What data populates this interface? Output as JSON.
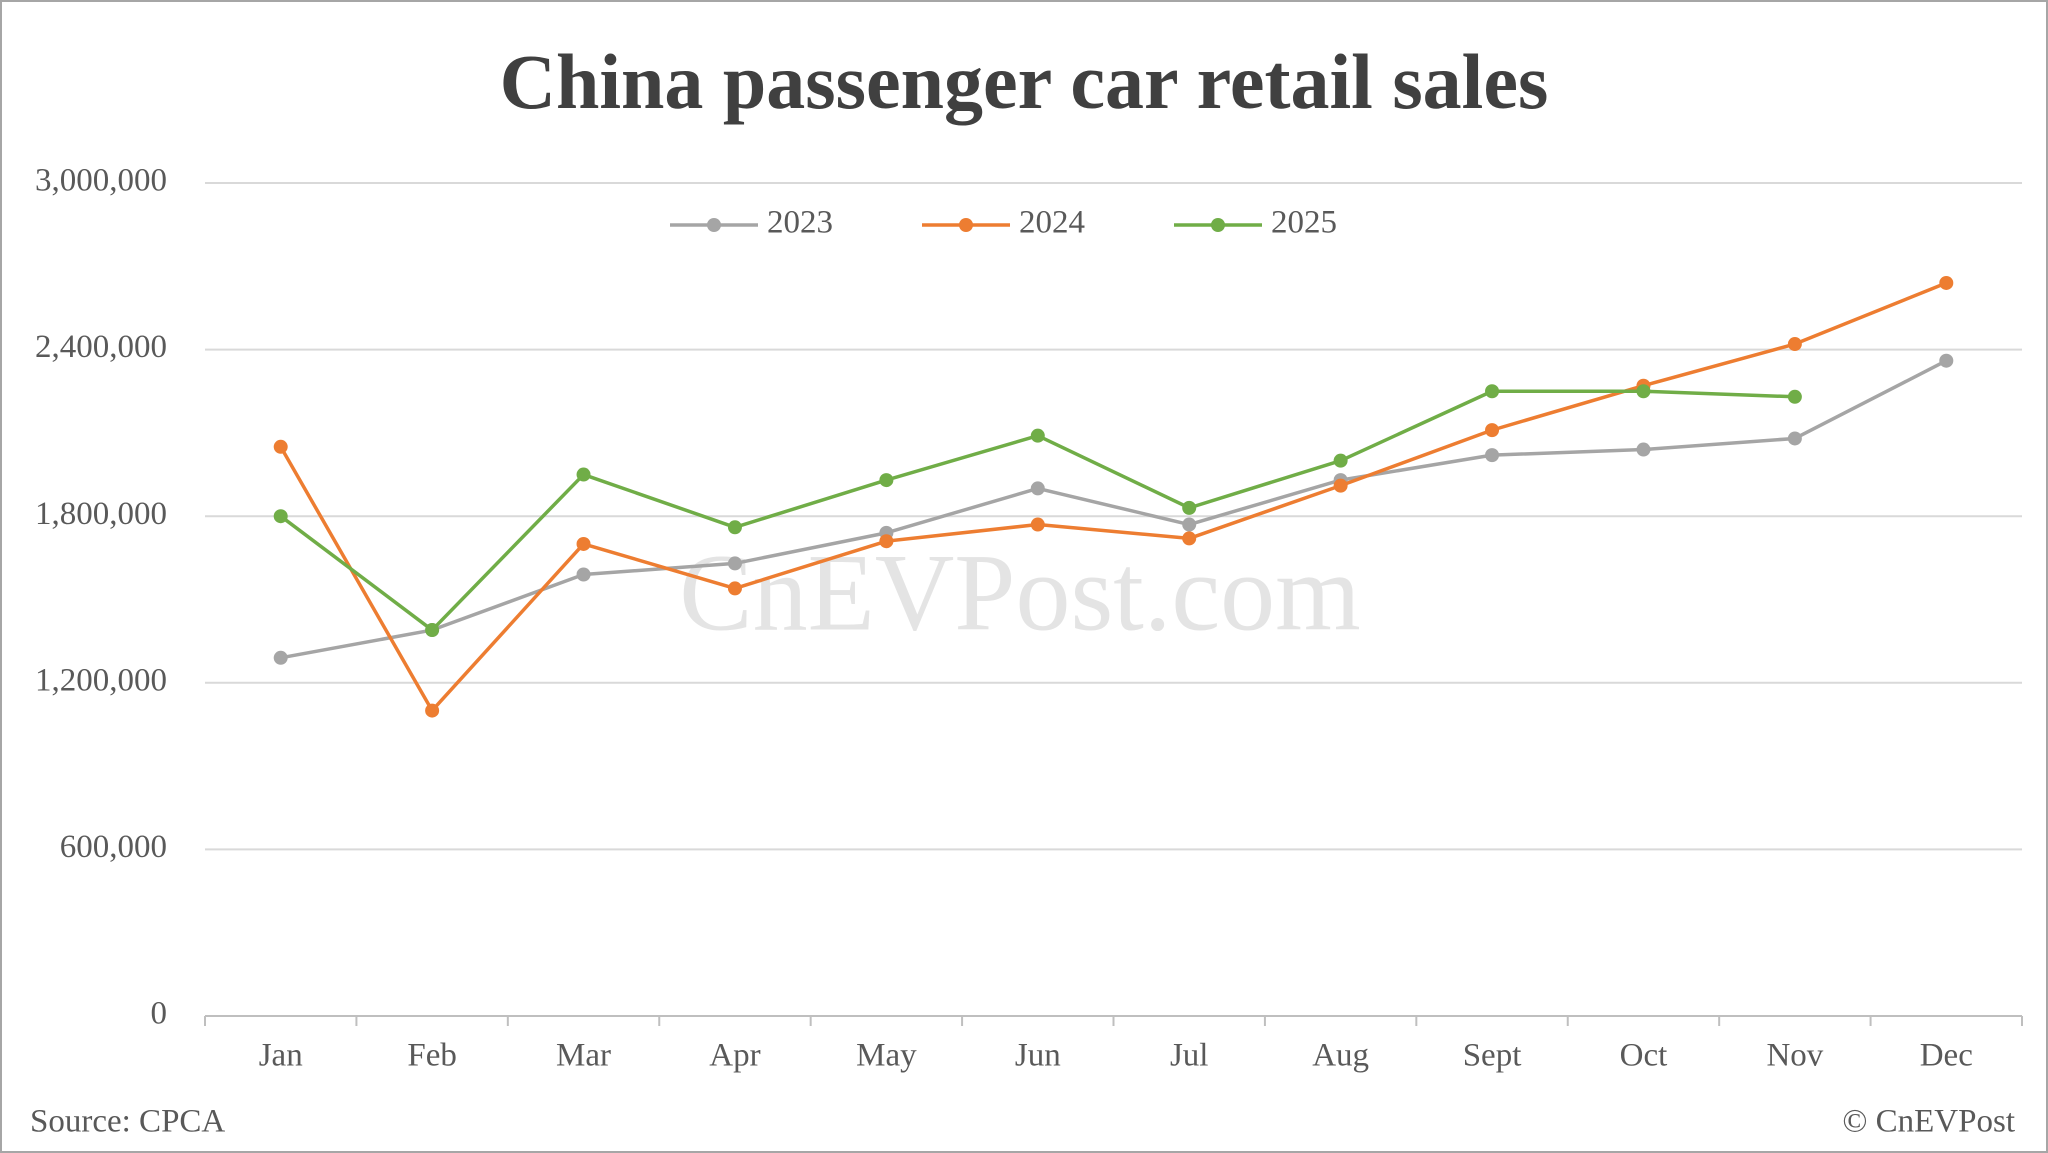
{
  "chart_data": {
    "type": "line",
    "title": "China passenger car retail sales",
    "watermark": "CnEVPost.com",
    "source": "Source: CPCA",
    "copyright": "© CnEVPost",
    "categories": [
      "Jan",
      "Feb",
      "Mar",
      "Apr",
      "May",
      "Jun",
      "Jul",
      "Aug",
      "Sept",
      "Oct",
      "Nov",
      "Dec"
    ],
    "series": [
      {
        "name": "2023",
        "color": "#a5a5a5",
        "values": [
          1290000,
          1390000,
          1590000,
          1630000,
          1740000,
          1900000,
          1770000,
          1930000,
          2020000,
          2040000,
          2080000,
          2360000
        ]
      },
      {
        "name": "2024",
        "color": "#ed7d31",
        "values": [
          2050000,
          1100000,
          1700000,
          1540000,
          1710000,
          1770000,
          1720000,
          1910000,
          2110000,
          2270000,
          2420000,
          2640000
        ]
      },
      {
        "name": "2025",
        "color": "#70ad47",
        "values": [
          1800000,
          1390000,
          1950000,
          1760000,
          1930000,
          2090000,
          1830000,
          2000000,
          2250000,
          2250000,
          2230000,
          null
        ]
      }
    ],
    "ylim": [
      0,
      3000000
    ],
    "yticks": [
      0,
      {
        "value": 600000,
        "label": "600,000"
      },
      {
        "value": 1200000,
        "label": "1,200,000"
      },
      {
        "value": 1800000,
        "label": "1,800,000"
      },
      {
        "value": 2400000,
        "label": "2,400,000"
      },
      {
        "value": 3000000,
        "label": "3,000,000"
      }
    ],
    "grid": true,
    "legend": "top"
  }
}
